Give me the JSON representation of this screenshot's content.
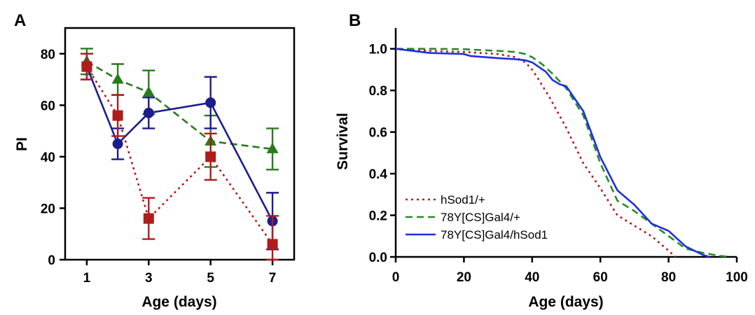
{
  "chart_data": [
    {
      "panel": "A",
      "type": "line",
      "xlabel": "Age (days)",
      "ylabel": "PI",
      "xlim": [
        0.3,
        7.7
      ],
      "ylim": [
        0,
        90
      ],
      "xticks": [
        1,
        3,
        5,
        7
      ],
      "yticks": [
        0,
        20,
        40,
        60,
        80
      ],
      "series": [
        {
          "color": "#2a7a1e",
          "dash": "dashed",
          "marker": "triangle",
          "x": [
            1,
            2,
            3,
            5,
            7
          ],
          "y": [
            77,
            70,
            65,
            46,
            43
          ],
          "err": [
            5,
            6,
            8.5,
            10,
            8
          ]
        },
        {
          "color": "#1c1c8f",
          "dash": "solid",
          "marker": "circle",
          "x": [
            1,
            2,
            3,
            5,
            7
          ],
          "y": [
            75,
            45,
            57,
            61,
            15
          ],
          "err": [
            5,
            6,
            6,
            10,
            11
          ]
        },
        {
          "color": "#b01c1c",
          "dash": "dotted",
          "marker": "square",
          "x": [
            1,
            2,
            3,
            5,
            7
          ],
          "y": [
            75,
            56,
            16,
            40,
            6
          ],
          "err": [
            5,
            8,
            8,
            9,
            11
          ]
        }
      ]
    },
    {
      "panel": "B",
      "type": "line",
      "xlabel": "Age (days)",
      "ylabel": "Survival",
      "xlim": [
        0,
        100
      ],
      "ylim": [
        0,
        1.1
      ],
      "xticks": [
        0,
        20,
        40,
        60,
        80,
        100
      ],
      "yticks": [
        0,
        0.2,
        0.4,
        0.6,
        0.8,
        1.0
      ],
      "ytick_labels": [
        "0.0",
        "0.2",
        "0.4",
        "0.6",
        "0.8",
        "1.0"
      ],
      "legend_position": "bottom-left",
      "series": [
        {
          "name": "hSod1/+",
          "color": "#b01c1c",
          "dash": "dotted",
          "x": [
            0,
            10,
            20,
            30,
            35,
            38,
            40,
            42,
            45,
            48,
            50,
            55,
            60,
            65,
            70,
            75,
            80,
            82
          ],
          "y": [
            1.0,
            0.99,
            0.985,
            0.975,
            0.96,
            0.935,
            0.9,
            0.85,
            0.77,
            0.68,
            0.62,
            0.45,
            0.33,
            0.2,
            0.15,
            0.1,
            0.03,
            0.0
          ]
        },
        {
          "name": "78Y[CS]Gal4/+",
          "color": "#2a8a28",
          "dash": "dashed",
          "x": [
            0,
            10,
            20,
            30,
            35,
            38,
            40,
            43,
            46,
            50,
            55,
            60,
            65,
            70,
            75,
            80,
            85,
            90,
            95,
            98
          ],
          "y": [
            1.0,
            1.0,
            0.998,
            0.99,
            0.985,
            0.975,
            0.96,
            0.925,
            0.88,
            0.81,
            0.68,
            0.45,
            0.27,
            0.22,
            0.16,
            0.1,
            0.04,
            0.02,
            0.005,
            0.0
          ]
        },
        {
          "name": "78Y[CS]Gal4/hSod1",
          "color": "#1f2ee0",
          "dash": "solid",
          "x": [
            0,
            10,
            20,
            22,
            30,
            35,
            38,
            40,
            44,
            46,
            48,
            50,
            55,
            60,
            65,
            70,
            75,
            80,
            85,
            90,
            92
          ],
          "y": [
            1.0,
            0.98,
            0.975,
            0.965,
            0.955,
            0.95,
            0.945,
            0.935,
            0.89,
            0.85,
            0.83,
            0.82,
            0.7,
            0.48,
            0.32,
            0.25,
            0.16,
            0.125,
            0.05,
            0.01,
            0.0
          ]
        }
      ]
    }
  ]
}
